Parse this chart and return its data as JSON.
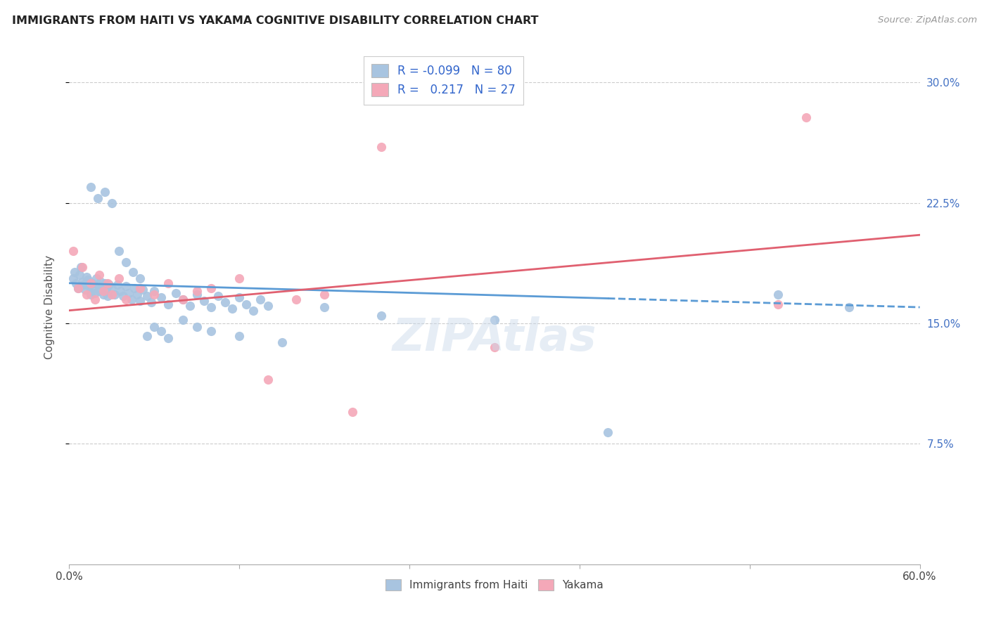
{
  "title": "IMMIGRANTS FROM HAITI VS YAKAMA COGNITIVE DISABILITY CORRELATION CHART",
  "source": "Source: ZipAtlas.com",
  "ylabel": "Cognitive Disability",
  "x_min": 0.0,
  "x_max": 0.6,
  "y_min": 0.0,
  "y_max": 0.32,
  "y_ticks": [
    0.075,
    0.15,
    0.225,
    0.3
  ],
  "y_tick_labels_right": [
    "7.5%",
    "15.0%",
    "22.5%",
    "30.0%"
  ],
  "legend_r_haiti": "-0.099",
  "legend_n_haiti": "80",
  "legend_r_yakama": "0.217",
  "legend_n_yakama": "27",
  "haiti_color": "#a8c4e0",
  "yakama_color": "#f4a8b8",
  "haiti_line_color": "#5b9bd5",
  "yakama_line_color": "#e06070",
  "haiti_line_solid_end": 0.38,
  "haiti_x": [
    0.003,
    0.004,
    0.005,
    0.006,
    0.007,
    0.008,
    0.009,
    0.01,
    0.011,
    0.012,
    0.013,
    0.014,
    0.015,
    0.016,
    0.017,
    0.018,
    0.019,
    0.02,
    0.021,
    0.022,
    0.023,
    0.024,
    0.025,
    0.026,
    0.027,
    0.028,
    0.03,
    0.032,
    0.034,
    0.036,
    0.038,
    0.04,
    0.042,
    0.044,
    0.046,
    0.048,
    0.05,
    0.052,
    0.055,
    0.058,
    0.06,
    0.065,
    0.07,
    0.075,
    0.08,
    0.085,
    0.09,
    0.095,
    0.1,
    0.105,
    0.11,
    0.115,
    0.12,
    0.125,
    0.13,
    0.135,
    0.14,
    0.015,
    0.02,
    0.025,
    0.03,
    0.035,
    0.04,
    0.045,
    0.05,
    0.055,
    0.06,
    0.065,
    0.07,
    0.08,
    0.09,
    0.1,
    0.12,
    0.15,
    0.18,
    0.22,
    0.3,
    0.38,
    0.5,
    0.55
  ],
  "haiti_y": [
    0.178,
    0.182,
    0.175,
    0.172,
    0.18,
    0.185,
    0.176,
    0.174,
    0.171,
    0.179,
    0.177,
    0.173,
    0.168,
    0.175,
    0.172,
    0.169,
    0.178,
    0.174,
    0.17,
    0.176,
    0.173,
    0.168,
    0.175,
    0.171,
    0.167,
    0.174,
    0.172,
    0.168,
    0.174,
    0.17,
    0.167,
    0.173,
    0.169,
    0.165,
    0.172,
    0.168,
    0.164,
    0.171,
    0.167,
    0.163,
    0.17,
    0.166,
    0.162,
    0.169,
    0.165,
    0.161,
    0.168,
    0.164,
    0.16,
    0.167,
    0.163,
    0.159,
    0.166,
    0.162,
    0.158,
    0.165,
    0.161,
    0.235,
    0.228,
    0.232,
    0.225,
    0.195,
    0.188,
    0.182,
    0.178,
    0.142,
    0.148,
    0.145,
    0.141,
    0.152,
    0.148,
    0.145,
    0.142,
    0.138,
    0.16,
    0.155,
    0.152,
    0.082,
    0.168,
    0.16
  ],
  "yakama_x": [
    0.003,
    0.006,
    0.009,
    0.012,
    0.015,
    0.018,
    0.021,
    0.024,
    0.027,
    0.03,
    0.035,
    0.04,
    0.05,
    0.06,
    0.07,
    0.08,
    0.09,
    0.1,
    0.12,
    0.14,
    0.16,
    0.18,
    0.2,
    0.22,
    0.3,
    0.5,
    0.52
  ],
  "yakama_y": [
    0.195,
    0.172,
    0.185,
    0.168,
    0.175,
    0.165,
    0.18,
    0.17,
    0.175,
    0.168,
    0.178,
    0.165,
    0.172,
    0.168,
    0.175,
    0.165,
    0.17,
    0.172,
    0.178,
    0.115,
    0.165,
    0.168,
    0.095,
    0.26,
    0.135,
    0.162,
    0.278
  ]
}
